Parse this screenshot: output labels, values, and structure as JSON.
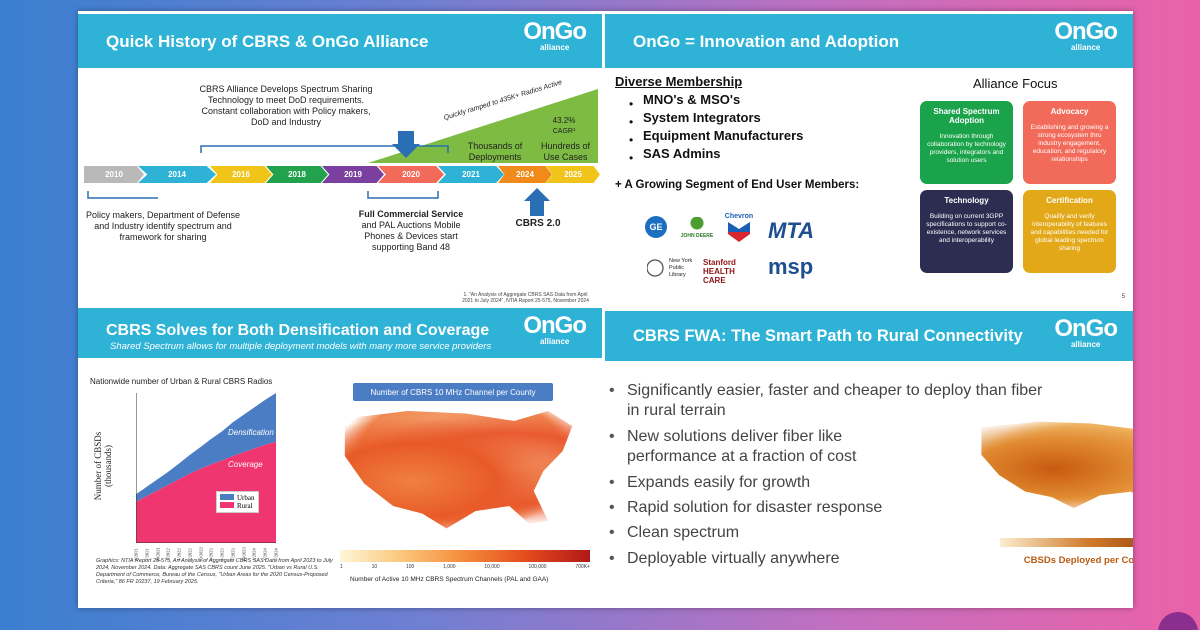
{
  "q1": {
    "title": "Quick History of CBRS & OnGo Alliance",
    "note_top": "CBRS Alliance Develops Spectrum Sharing Technology to meet DoD requirements. Constant collaboration with Policy makers, DoD and Industry",
    "ramp_text": "Quickly ramped to 435K+ Radios Active",
    "cagr": "43.2%",
    "cagr_label": "CAGR¹",
    "thousands": "Thousands of Deployments",
    "hundreds": "Hundreds of Use Cases",
    "years": [
      "2010",
      "2014",
      "2016",
      "2018",
      "2019",
      "2020",
      "2021",
      "2024",
      "2025"
    ],
    "note_left": "Policy makers, Department of Defense and Industry identify spectrum and framework for sharing",
    "commercial_title": "Full Commercial Service",
    "commercial_body": "and PAL Auctions Mobile Phones & Devices start supporting Band 48",
    "cbrs2": "CBRS 2.0",
    "footnote": "1. \"An Analysis of Aggregate CBRS SAS Data from April 2021 to July 2024\", NTIA Report 25-575, November 2024"
  },
  "q2": {
    "title": "OnGo = Innovation and Adoption",
    "membership_heading": "Diverse Membership",
    "members": [
      "MNO's & MSO's",
      "System Integrators",
      "Equipment Manufacturers",
      "SAS Admins"
    ],
    "growing": "+ A Growing Segment of End User Members:",
    "logos": [
      "GE",
      "JOHN DEERE",
      "Chevron",
      "MTA",
      "New York Public Library",
      "Stanford HEALTH CARE",
      "msp"
    ],
    "focus_heading": "Alliance Focus",
    "focus": [
      {
        "h": "Shared Spectrum Adoption",
        "b": "Innovation through collaboration by technology providers, integrators and solution users",
        "color": "#1aa34a"
      },
      {
        "h": "Advocacy",
        "b": "Establishing and growing a strong ecosystem thru industry engagement, education, and regulatory relationships",
        "color": "#f26a5a"
      },
      {
        "h": "Technology",
        "b": "Building on current 3GPP specifications to support co-existence, network services and interoperability",
        "color": "#2d2d52"
      },
      {
        "h": "Certification",
        "b": "Qualify and verify interoperability of features and capabilities needed for global leading spectrum sharing",
        "color": "#e2a817"
      }
    ],
    "page_num": "5"
  },
  "q3": {
    "title": "CBRS Solves for Both Densification and Coverage",
    "subtitle": "Shared Spectrum allows for multiple deployment models with many more service providers",
    "chart_title": "Nationwide number of Urban & Rural CBRS Radios",
    "ylabel": "Number of CBSDs (thousands)",
    "area_labels": [
      "Densification",
      "Coverage"
    ],
    "map_title": "Number of CBRS 10 MHz Channel per County",
    "scale_ticks": [
      "1",
      "10",
      "100",
      "1,000",
      "10,000",
      "100,000",
      "700K+"
    ],
    "scale_label": "Number of Active 10 MHz CBRS Spectrum Channels (PAL and GAA)",
    "credits": "Graphics: NTIA Report 25-575, An Analysis of Aggregate CBRS SAS Data from April 2023 to July 2024, November 2024. Data: Aggregate SAS CBRS count June 2025. \"Urban vs Rural U.S. Department of Commerce, Bureau of the Census, \"Urban Areas for the 2020 Census-Proposed Criteria,\" 86 FR 10237, 19 February 2025."
  },
  "q4": {
    "title": "CBRS FWA: The Smart Path to Rural Connectivity",
    "bullets": [
      "Significantly easier, faster and cheaper to deploy than fiber in rural terrain",
      "New solutions deliver fiber like performance at a fraction of cost",
      "Expands easily for growth",
      "Rapid solution for disaster response",
      "Clean spectrum",
      "Deployable virtually anywhere"
    ],
    "map_label": "CBSDs Deployed per County"
  },
  "logo": {
    "main": "OnGo",
    "sub": "alliance"
  },
  "chart_data": {
    "type": "area",
    "title": "Nationwide number of Urban & Rural CBRS Radios",
    "xlabel": "",
    "ylabel": "Number of CBSDs (thousands)",
    "ylim": [
      0,
      400
    ],
    "x": [
      "4/2021",
      "7/2021",
      "10/2021",
      "1/2022",
      "4/2022",
      "7/2022",
      "10/2022",
      "1/2023",
      "4/2023",
      "7/2023",
      "10/2023",
      "1/2024",
      "4/2024",
      "7/2024"
    ],
    "series": [
      {
        "name": "Rural",
        "values": [
          110,
          125,
          140,
          155,
          170,
          185,
          198,
          210,
          220,
          232,
          242,
          252,
          262,
          270
        ]
      },
      {
        "name": "Urban",
        "values": [
          20,
          25,
          30,
          35,
          42,
          50,
          58,
          68,
          78,
          90,
          100,
          110,
          120,
          130
        ]
      }
    ],
    "legend": "bottom-right",
    "grid": false
  }
}
